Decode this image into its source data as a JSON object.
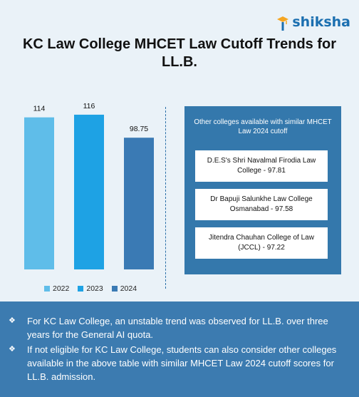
{
  "brand": {
    "name": "shiksha",
    "icon": "graduation-cap-logo-icon",
    "color": "#1b6fb0"
  },
  "chart_data": {
    "type": "bar",
    "title": "KC Law College MHCET Law Cutoff Trends for LL.B.",
    "series": [
      {
        "name": "2022",
        "value": 114,
        "label": "114",
        "color": "#5fbde9"
      },
      {
        "name": "2023",
        "value": 116,
        "label": "116",
        "color": "#1ea2e4"
      },
      {
        "name": "2024",
        "value": 98.75,
        "label": "98.75",
        "color": "#3a7ab4"
      }
    ],
    "ylim": [
      0,
      140
    ],
    "grid": false,
    "legend_position": "bottom"
  },
  "side_panel": {
    "heading": "Other colleges available with similar MHCET Law 2024 cutoff",
    "colleges": [
      "D.E.S's Shri Navalmal Firodia Law College - 97.81",
      "Dr Bapuji Salunkhe Law College Osmanabad - 97.58",
      "Jitendra Chauhan College of Law (JCCL) - 97.22"
    ]
  },
  "notes": {
    "bullet_icon": "diamond-bullet-icon",
    "bullet_glyph": "❖",
    "items": [
      "For KC Law College, an unstable trend was observed for LL.B. over three years for the General AI quota.",
      "If not eligible for KC Law College, students can also consider other colleges available in the above table with similar MHCET Law 2024 cutoff scores for LL.B. admission."
    ]
  }
}
